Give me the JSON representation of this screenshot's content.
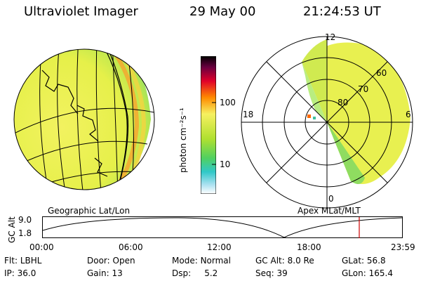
{
  "header": {
    "instrument": "Ultraviolet Imager",
    "date": "29 May 00",
    "time": "21:24:53 UT"
  },
  "colorbar": {
    "unit_label": "photon cm⁻²s⁻¹",
    "ticks": [
      "100",
      "10"
    ]
  },
  "map_labels": {
    "left": "Geographic Lat/Lon",
    "right": "Apex MLat/MLT"
  },
  "polar": {
    "mlt_labels": [
      "12",
      "18",
      "6",
      "0"
    ],
    "mlat_labels": [
      "60",
      "70",
      "80"
    ]
  },
  "altitude_plot": {
    "axis_label": "GC Alt",
    "y_ticks": [
      "9.0",
      "1.8"
    ],
    "x_ticks": [
      "00:00",
      "06:00",
      "12:00",
      "18:00",
      "23:59"
    ],
    "marker_color": "#cc0000"
  },
  "status": {
    "row1": [
      {
        "label": "Flt:",
        "value": "LBHL"
      },
      {
        "label": "Door:",
        "value": "Open"
      },
      {
        "label": "Mode:",
        "value": "Normal"
      },
      {
        "label": "GC Alt:",
        "value": "8.0 Re"
      },
      {
        "label": "GLat:",
        "value": "56.8"
      }
    ],
    "row2": [
      {
        "label": "IP:",
        "value": "36.0"
      },
      {
        "label": "Gain:",
        "value": "13"
      },
      {
        "label": "Dsp:",
        "value": "5.2"
      },
      {
        "label": "Seq:",
        "value": "39"
      },
      {
        "label": "GLon:",
        "value": "165.4"
      }
    ]
  }
}
